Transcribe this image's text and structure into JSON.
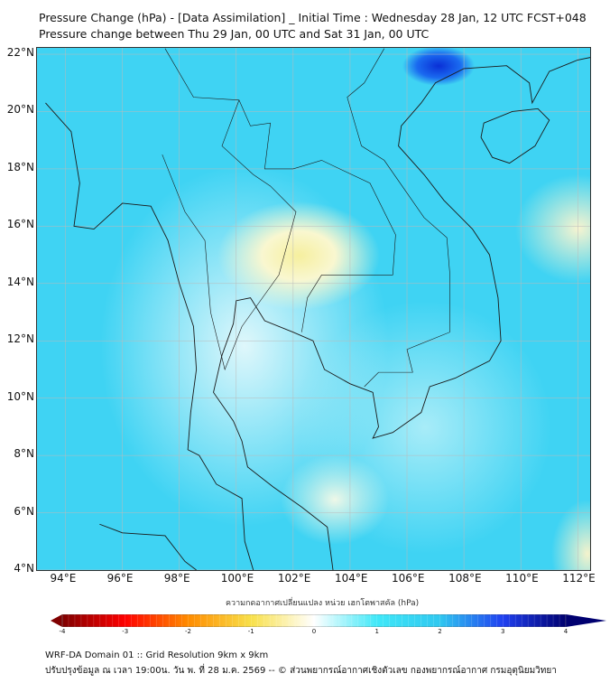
{
  "title": {
    "line1": "Pressure Change (hPa) - [Data Assimilation] _ Initial Time : Wednesday 28 Jan, 12 UTC FCST+048",
    "line2": "Pressure change between Thu 29 Jan, 00 UTC and Sat 31 Jan, 00 UTC"
  },
  "map": {
    "lat_labels": [
      "22°N",
      "20°N",
      "18°N",
      "16°N",
      "14°N",
      "12°N",
      "10°N",
      "8°N",
      "6°N",
      "4°N"
    ],
    "lon_labels": [
      "94°E",
      "96°E",
      "98°E",
      "100°E",
      "102°E",
      "104°E",
      "106°E",
      "108°E",
      "110°E",
      "112°E"
    ]
  },
  "colorbar": {
    "label": "ความกดอากาศเปลี่ยนแปลง หน่วย เฮกโตพาสคัล (hPa)",
    "ticks": [
      "-4",
      "-3",
      "-2",
      "-1",
      "0",
      "1",
      "2",
      "3",
      "4"
    ],
    "range": [
      -4,
      4
    ],
    "colors": [
      "#800000",
      "#ff0000",
      "#ff8c00",
      "#f8e04a",
      "#ffffff",
      "#40e8f8",
      "#30c8f0",
      "#2040f0",
      "#000070"
    ]
  },
  "footer": {
    "line1": "WRF-DA Domain 01 :: Grid Resolution 9km x 9km",
    "line2": "ปรับปรุงข้อมูล ณ เวลา 19:00น. วัน พ. ที่ 28 ม.ค. 2569 -- © ส่วนพยากรณ์อากาศเชิงตัวเลข กองพยากรณ์อากาศ กรมอุตุนิยมวิทยา"
  }
}
